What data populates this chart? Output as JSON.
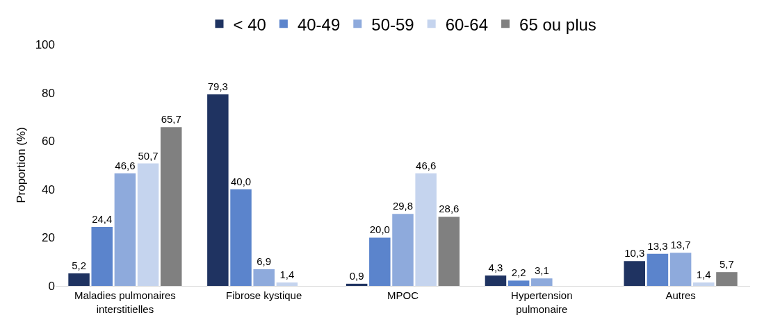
{
  "chart_data": {
    "type": "bar",
    "ylabel": "Proportion (%)",
    "categories": [
      "Maladies pulmonaires interstitielles",
      "Fibrose kystique",
      "MPOC",
      "Hypertension pulmonaire",
      "Autres"
    ],
    "series": [
      {
        "name": "< 40",
        "color": "#1f3361",
        "values": [
          5.2,
          79.3,
          0.9,
          4.3,
          10.3
        ],
        "value_labels": [
          "5,2",
          "79,3",
          "0,9",
          "4,3",
          "10,3"
        ]
      },
      {
        "name": "40-49",
        "color": "#5b84cc",
        "values": [
          24.4,
          40.0,
          20.0,
          2.2,
          13.3
        ],
        "value_labels": [
          "24,4",
          "40,0",
          "20,0",
          "2,2",
          "13,3"
        ]
      },
      {
        "name": "50-59",
        "color": "#8eaadc",
        "values": [
          46.6,
          6.9,
          29.8,
          3.1,
          13.7
        ],
        "value_labels": [
          "46,6",
          "6,9",
          "29,8",
          "3,1",
          "13,7"
        ]
      },
      {
        "name": "60-64",
        "color": "#c5d4ee",
        "values": [
          50.7,
          1.4,
          46.6,
          null,
          1.4
        ],
        "value_labels": [
          "50,7",
          "1,4",
          "46,6",
          null,
          "1,4"
        ]
      },
      {
        "name": "65 ou plus",
        "color": "#808080",
        "values": [
          65.7,
          null,
          28.6,
          null,
          5.7
        ],
        "value_labels": [
          "65,7",
          null,
          "28,6",
          null,
          "5,7"
        ]
      }
    ],
    "ylim": [
      0,
      100
    ],
    "yticks": [
      0,
      20,
      40,
      60,
      80,
      100
    ],
    "grid": false,
    "legend": "top"
  }
}
